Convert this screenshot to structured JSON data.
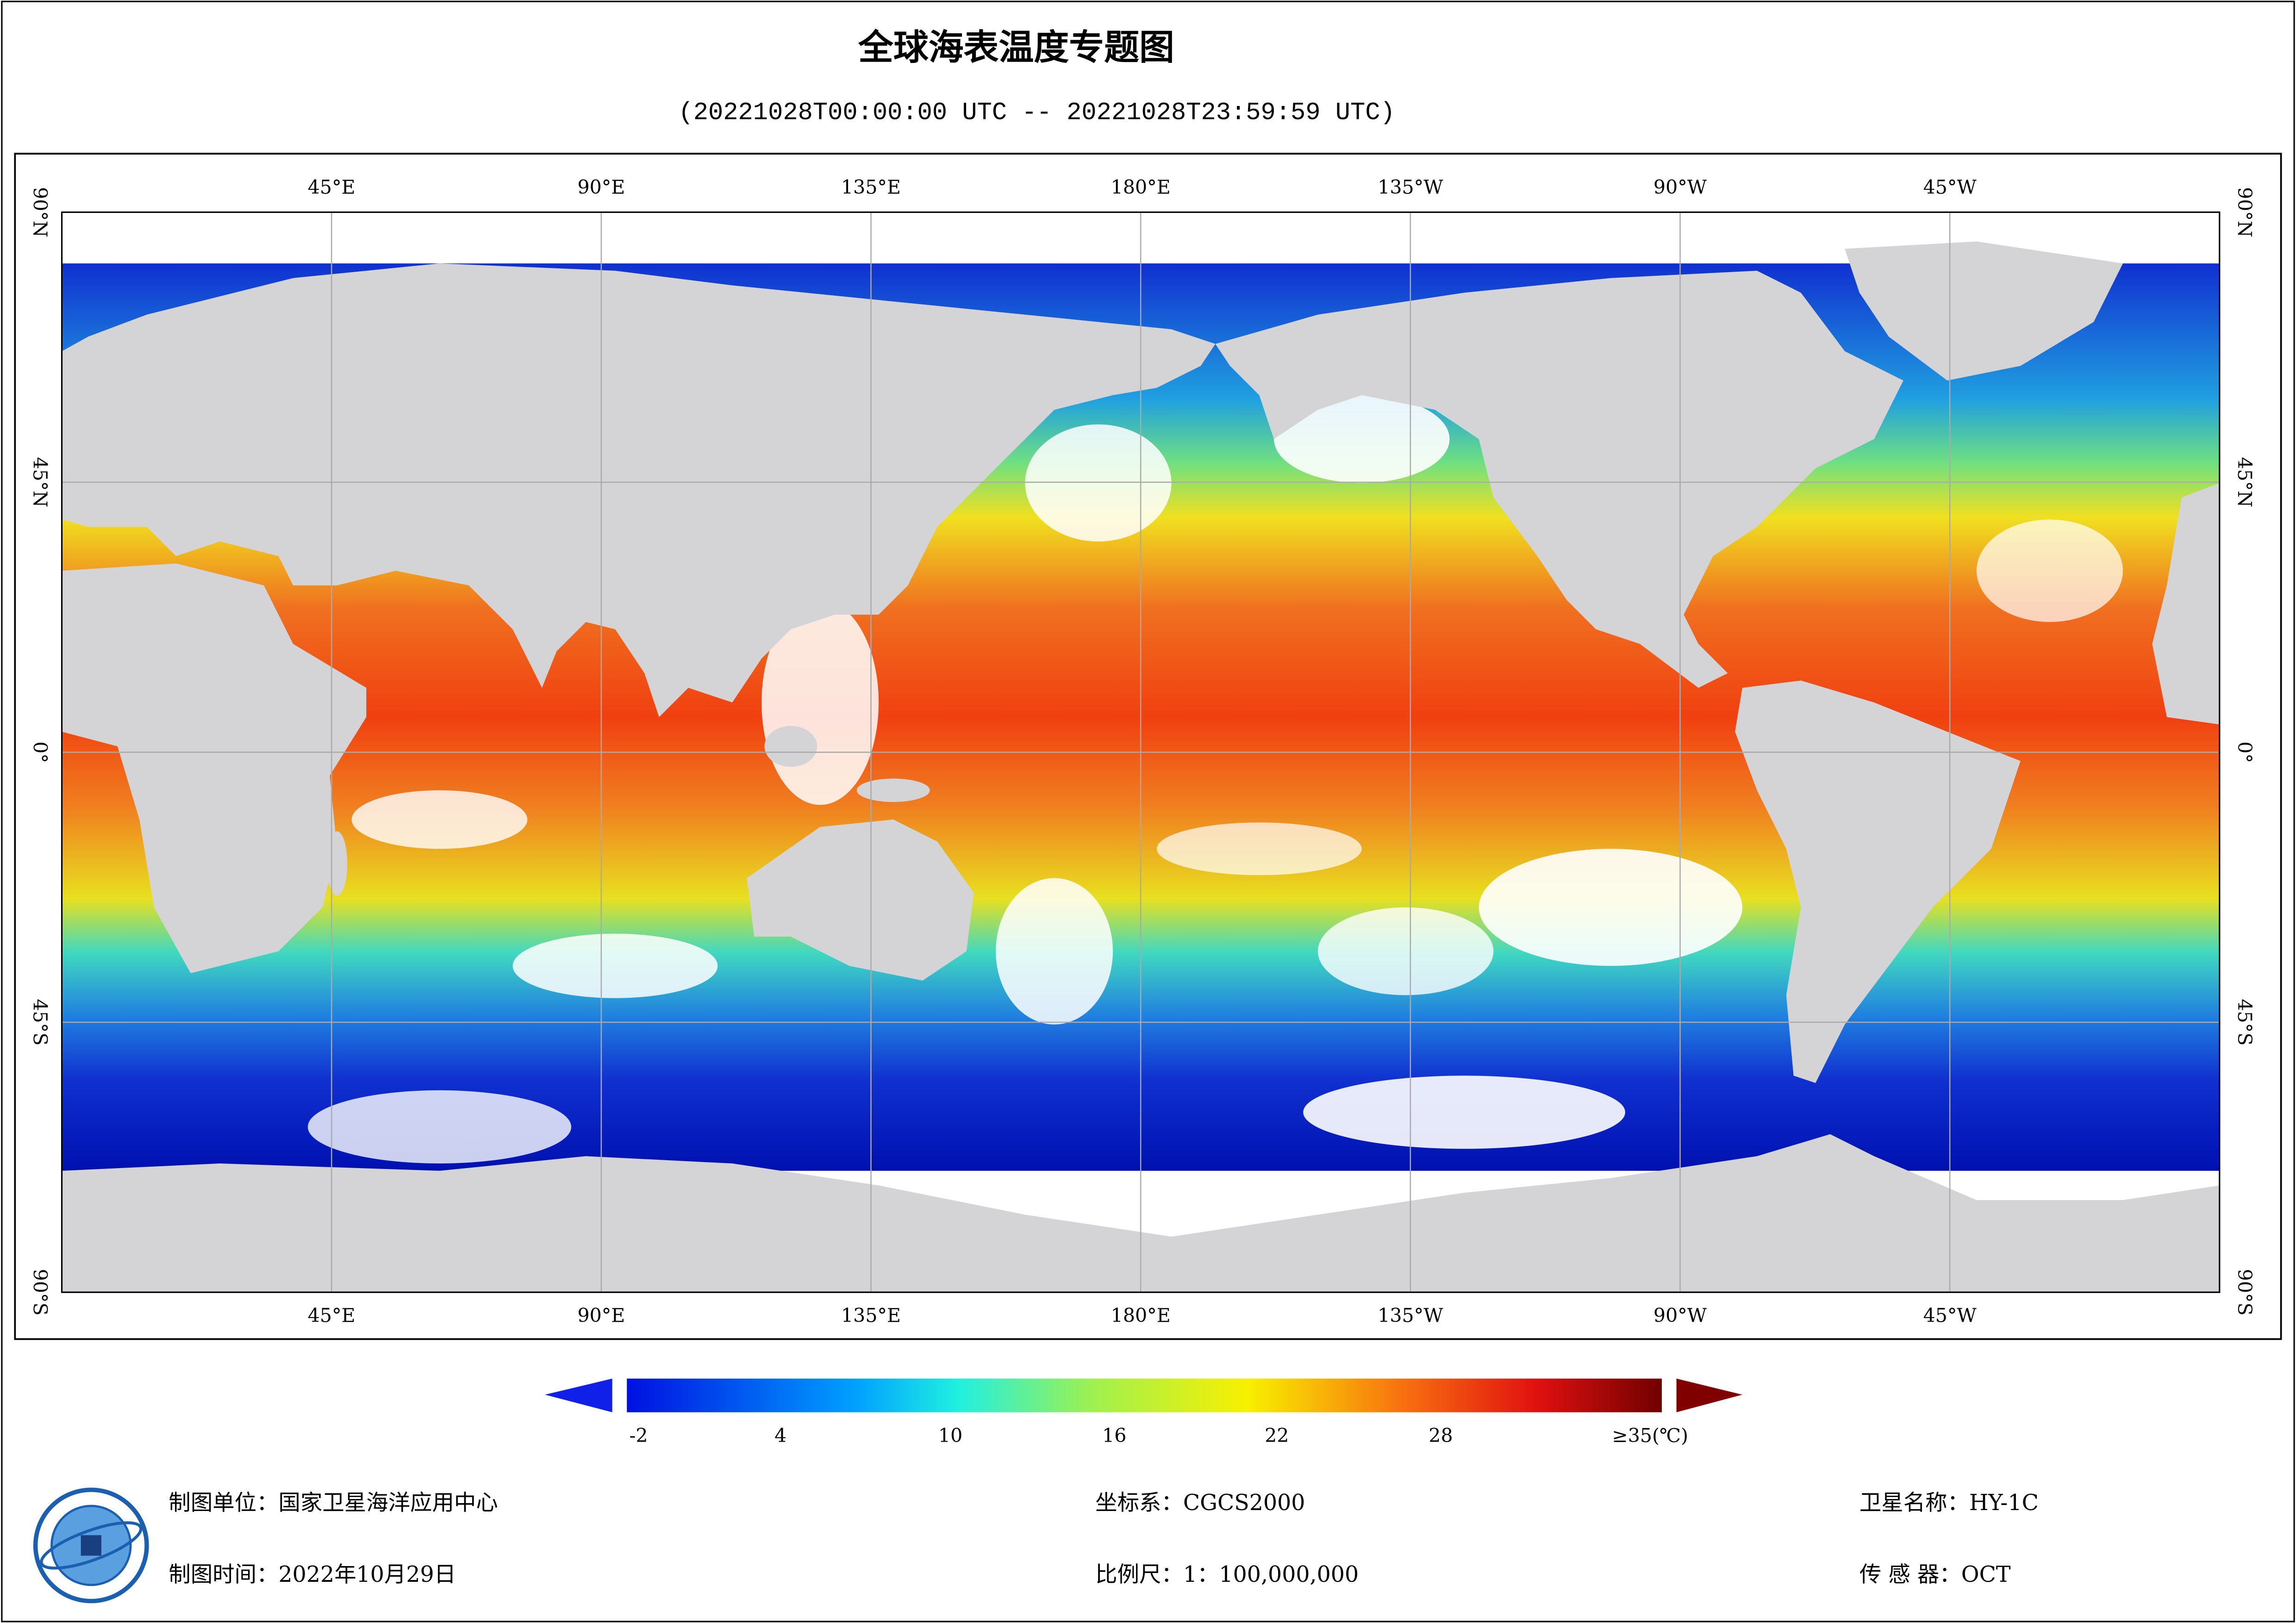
{
  "header": {
    "title": "全球海表温度专题图",
    "subtitle": "(20221028T00:00:00 UTC -- 20221028T23:59:59 UTC)"
  },
  "map": {
    "lon_labels": [
      "45°E",
      "90°E",
      "135°E",
      "180°E",
      "135°W",
      "90°W",
      "45°W"
    ],
    "lat_labels": [
      "90°N",
      "45°N",
      "0°",
      "45°S",
      "90°S"
    ]
  },
  "colorbar": {
    "labels": [
      "-2",
      "4",
      "10",
      "16",
      "22",
      "28",
      "≥35(℃)"
    ]
  },
  "footer": {
    "unit": "制图单位：国家卫星海洋应用中心",
    "date": "制图时间：2022年10月29日",
    "crs": "坐标系：CGCS2000",
    "scale": "比例尺：1：100,000,000",
    "satellite": "卫星名称：HY-1C",
    "sensor": "传 感 器：OCT"
  }
}
